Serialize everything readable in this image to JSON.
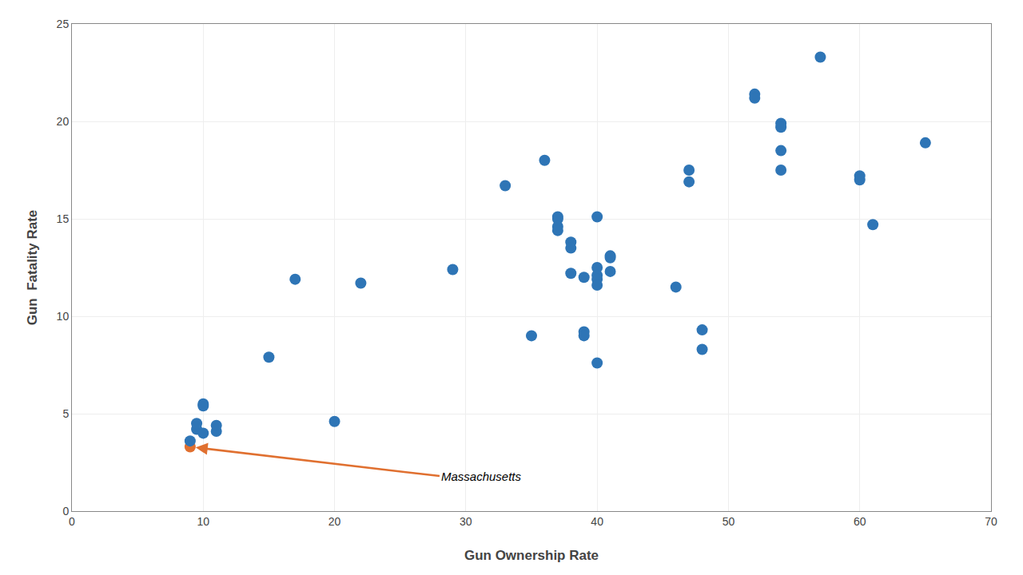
{
  "chart_data": {
    "type": "scatter",
    "x": [
      9,
      9,
      9.5,
      9.5,
      10,
      10,
      10,
      11,
      11,
      15,
      17,
      20,
      22,
      29,
      33,
      35,
      36,
      37,
      37,
      37,
      37,
      38,
      38,
      38,
      39,
      39,
      39,
      40,
      40,
      40,
      40,
      40,
      41,
      41,
      41,
      40,
      46,
      47,
      47,
      48,
      48,
      52,
      52,
      54,
      54,
      54,
      54,
      57,
      60,
      60,
      61,
      65
    ],
    "values": [
      3.3,
      3.6,
      4.2,
      4.5,
      4.0,
      5.5,
      5.4,
      4.1,
      4.4,
      7.9,
      11.9,
      4.6,
      11.7,
      12.4,
      16.7,
      9.0,
      18.0,
      15.1,
      15.0,
      14.6,
      14.4,
      13.8,
      13.5,
      12.2,
      12.0,
      9.2,
      9.0,
      15.1,
      12.5,
      12.1,
      11.9,
      11.6,
      13.1,
      13.0,
      12.3,
      7.6,
      11.5,
      17.5,
      16.9,
      9.3,
      8.3,
      21.4,
      21.2,
      19.9,
      19.7,
      18.5,
      17.5,
      23.3,
      17.2,
      17.0,
      14.7,
      18.9
    ],
    "colors": [
      "#E07030",
      "#2E75B6",
      "#2E75B6",
      "#2E75B6",
      "#2E75B6",
      "#2E75B6",
      "#2E75B6",
      "#2E75B6",
      "#2E75B6",
      "#2E75B6",
      "#2E75B6",
      "#2E75B6",
      "#2E75B6",
      "#2E75B6",
      "#2E75B6",
      "#2E75B6",
      "#2E75B6",
      "#2E75B6",
      "#2E75B6",
      "#2E75B6",
      "#2E75B6",
      "#2E75B6",
      "#2E75B6",
      "#2E75B6",
      "#2E75B6",
      "#2E75B6",
      "#2E75B6",
      "#2E75B6",
      "#2E75B6",
      "#2E75B6",
      "#2E75B6",
      "#2E75B6",
      "#2E75B6",
      "#2E75B6",
      "#2E75B6",
      "#2E75B6",
      "#2E75B6",
      "#2E75B6",
      "#2E75B6",
      "#2E75B6",
      "#2E75B6",
      "#2E75B6",
      "#2E75B6",
      "#2E75B6",
      "#2E75B6",
      "#2E75B6",
      "#2E75B6",
      "#2E75B6",
      "#2E75B6",
      "#2E75B6",
      "#2E75B6",
      "#2E75B6"
    ],
    "xlabel": "Gun Ownership Rate",
    "ylabel": "Gun  Fatality Rate",
    "xlim": [
      0,
      70
    ],
    "ylim": [
      0,
      25
    ],
    "xticks": [
      0,
      10,
      20,
      30,
      40,
      50,
      60,
      70
    ],
    "yticks": [
      0,
      5,
      10,
      15,
      20,
      25
    ],
    "grid": true,
    "annotations": [
      {
        "text": "Massachusetts",
        "x": 9,
        "y": 3.3,
        "text_x": 28,
        "text_y": 1.8,
        "color": "#E07030"
      }
    ]
  }
}
